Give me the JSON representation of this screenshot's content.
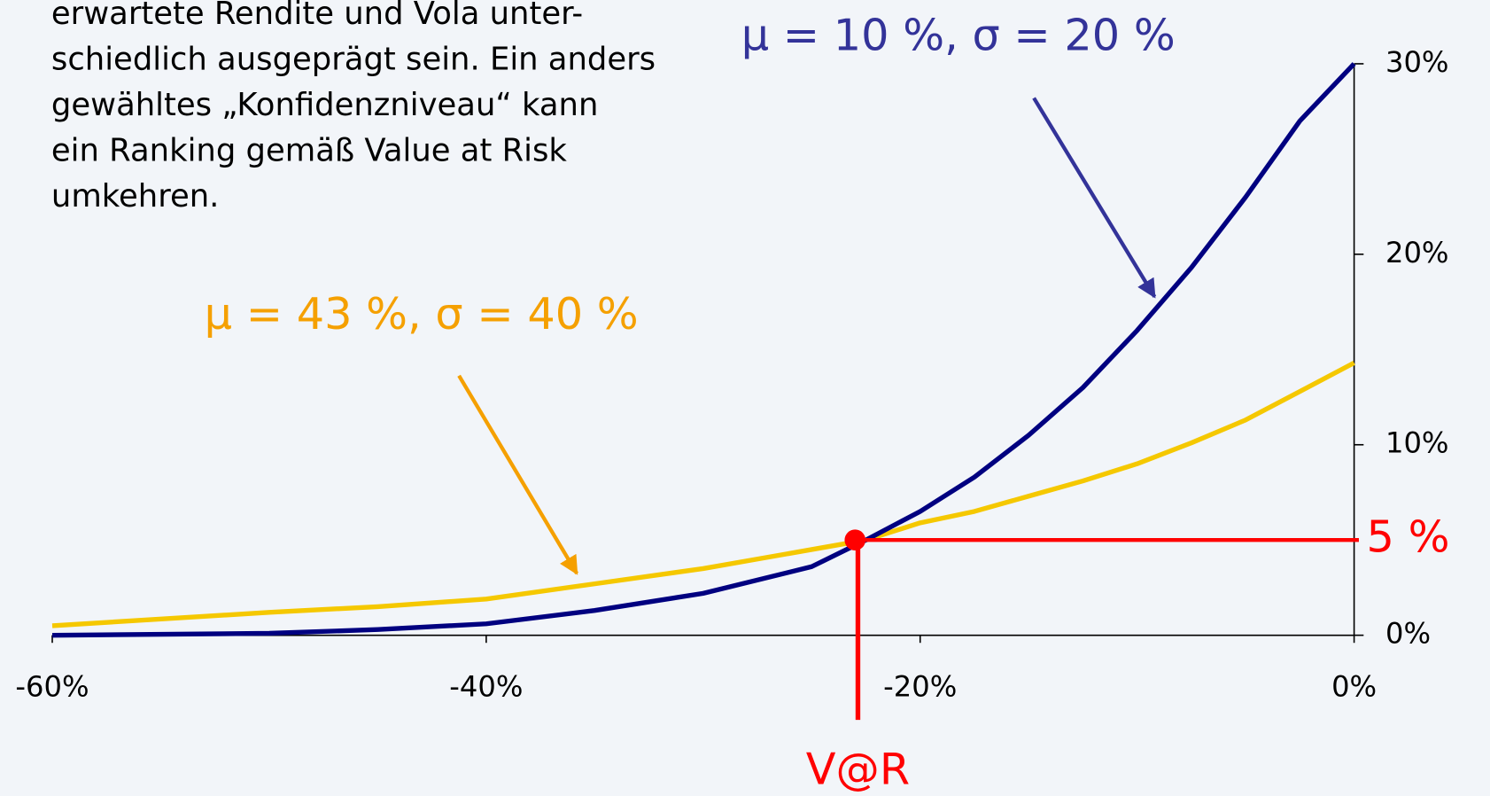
{
  "chart_data": {
    "type": "line",
    "text_lines": [
      "erwartete Rendite und Vola unter-",
      "schiedlich ausgeprägt sein. Ein anders",
      "gewähltes „Konfidenzniveau“ kann",
      "ein Ranking gemäß Value at Risk",
      "umkehren."
    ],
    "x": [
      -60,
      -50,
      -45,
      -40,
      -35,
      -30,
      -25,
      -22.5,
      -20,
      -17.5,
      -15,
      -12.5,
      -10,
      -7.5,
      -5,
      -2.5,
      0
    ],
    "series": [
      {
        "name": "μ = 10 %, σ = 20 %",
        "color": "#000080",
        "label_color": "#333399",
        "values": [
          0,
          0.1,
          0.3,
          0.6,
          1.3,
          2.2,
          3.6,
          5,
          6.5,
          8.3,
          10.5,
          13,
          16,
          19.3,
          23,
          27,
          30
        ]
      },
      {
        "name": "μ = 43 %, σ = 40 %",
        "color": "#f5c800",
        "label_color": "#f5a000",
        "values": [
          0.5,
          1.2,
          1.5,
          1.9,
          2.7,
          3.5,
          4.5,
          5,
          5.9,
          6.5,
          7.3,
          8.1,
          9,
          10.1,
          11.3,
          12.8,
          14.3
        ]
      }
    ],
    "var_point": {
      "x": -23,
      "y": 5,
      "x_label": "V@R",
      "y_label": "5 %",
      "color": "#ff0000"
    },
    "xlim": [
      -60,
      0
    ],
    "xticks": [
      {
        "value": -60,
        "label": "-60%"
      },
      {
        "value": -40,
        "label": "-40%"
      },
      {
        "value": -20,
        "label": "-20%"
      },
      {
        "value": 0,
        "label": "0%"
      }
    ],
    "ylim": [
      0,
      30
    ],
    "yticks": [
      {
        "value": 0,
        "label": "0%"
      },
      {
        "value": 10,
        "label": "10%"
      },
      {
        "value": 20,
        "label": "20%"
      },
      {
        "value": 30,
        "label": "30%"
      }
    ]
  }
}
